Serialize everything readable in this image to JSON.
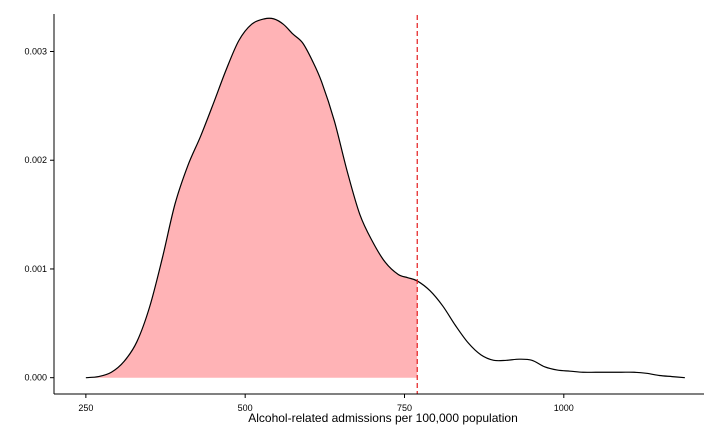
{
  "chart_data": {
    "type": "area",
    "title": "",
    "xlabel": "Alcohol-related admissions per 100,000 population",
    "ylabel": "",
    "xlim": [
      200,
      1220
    ],
    "ylim": [
      -0.00015,
      0.0034
    ],
    "x_ticks": [
      250,
      500,
      750,
      1000
    ],
    "x_tick_labels": [
      "250",
      "500",
      "750",
      "1000"
    ],
    "y_ticks": [
      0.0,
      0.001,
      0.002,
      0.003
    ],
    "y_tick_labels": [
      "0.000",
      "0.001",
      "0.002",
      "0.003"
    ],
    "grid": false,
    "legend": "none",
    "threshold_x": 770,
    "colors": {
      "fill": "#ffb3b6",
      "curve": "#000000",
      "threshold": "#e41a1c",
      "axis": "#000000"
    },
    "series": [
      {
        "x": [
          250,
          270,
          290,
          310,
          330,
          350,
          370,
          390,
          410,
          430,
          450,
          470,
          490,
          510,
          530,
          545,
          560,
          575,
          590,
          605,
          620,
          640,
          660,
          680,
          700,
          720,
          740,
          755,
          770,
          790,
          810,
          830,
          850,
          870,
          890,
          910,
          930,
          950,
          970,
          990,
          1010,
          1030,
          1050,
          1070,
          1090,
          1110,
          1130,
          1150,
          1170,
          1190
        ],
        "y": [
          0.0,
          1e-05,
          5e-05,
          0.00015,
          0.00033,
          0.00065,
          0.0011,
          0.0016,
          0.00195,
          0.00222,
          0.00252,
          0.00283,
          0.0031,
          0.00325,
          0.0033,
          0.0033,
          0.00325,
          0.00316,
          0.00308,
          0.00292,
          0.00272,
          0.00236,
          0.0019,
          0.0015,
          0.00125,
          0.00106,
          0.00095,
          0.00092,
          0.00089,
          0.0008,
          0.00066,
          0.00048,
          0.00032,
          0.00021,
          0.00016,
          0.00016,
          0.00017,
          0.00016,
          0.0001,
          7e-05,
          6e-05,
          5e-05,
          5e-05,
          5e-05,
          5e-05,
          5e-05,
          4e-05,
          2e-05,
          1e-05,
          0.0
        ]
      }
    ]
  }
}
